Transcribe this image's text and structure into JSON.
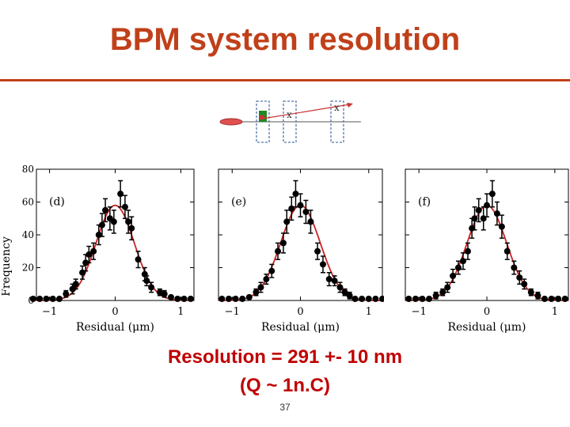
{
  "slide": {
    "title": "BPM system resolution",
    "result_line1": "Resolution = 291 +- 10 nm",
    "result_line2": "(Q ~ 1n.C)",
    "page_number": "37",
    "title_color": "#c0401a",
    "rule_color": "#c0401a",
    "result_color": "#c00000"
  },
  "diagram": {
    "marker_label": "x",
    "beam_color": "#e05050",
    "bpm_box_color": "#5577aa",
    "trajectory_color": "#cc3333",
    "mid_marker_label": "x"
  },
  "chart_data": [
    {
      "type": "scatter",
      "panel_label": "(d)",
      "xlabel": "Residual (μm)",
      "ylabel": "Frequency",
      "xlim": [
        -1.2,
        1.2
      ],
      "ylim": [
        0,
        80
      ],
      "xticks": [
        -1,
        0,
        1
      ],
      "yticks": [
        0,
        20,
        40,
        60,
        80
      ],
      "show_yticklabels": true,
      "fit_curve": {
        "type": "gaussian",
        "amplitude": 58,
        "mean": 0,
        "sigma": 0.29,
        "color": "#cc2222"
      },
      "points": [
        {
          "x": -1.25,
          "y": 1,
          "err": 1
        },
        {
          "x": -1.15,
          "y": 1,
          "err": 1
        },
        {
          "x": -1.05,
          "y": 1,
          "err": 1
        },
        {
          "x": -0.95,
          "y": 1,
          "err": 1
        },
        {
          "x": -0.85,
          "y": 1,
          "err": 1
        },
        {
          "x": -0.75,
          "y": 4,
          "err": 2
        },
        {
          "x": -0.65,
          "y": 7,
          "err": 3
        },
        {
          "x": -0.6,
          "y": 10,
          "err": 3
        },
        {
          "x": -0.5,
          "y": 17,
          "err": 4
        },
        {
          "x": -0.45,
          "y": 23,
          "err": 5
        },
        {
          "x": -0.4,
          "y": 28,
          "err": 5
        },
        {
          "x": -0.33,
          "y": 30,
          "err": 5
        },
        {
          "x": -0.25,
          "y": 40,
          "err": 6
        },
        {
          "x": -0.2,
          "y": 46,
          "err": 7
        },
        {
          "x": -0.15,
          "y": 55,
          "err": 7
        },
        {
          "x": -0.08,
          "y": 50,
          "err": 7
        },
        {
          "x": -0.02,
          "y": 48,
          "err": 7
        },
        {
          "x": 0.08,
          "y": 65,
          "err": 8
        },
        {
          "x": 0.15,
          "y": 57,
          "err": 7
        },
        {
          "x": 0.2,
          "y": 48,
          "err": 7
        },
        {
          "x": 0.25,
          "y": 44,
          "err": 7
        },
        {
          "x": 0.35,
          "y": 25,
          "err": 5
        },
        {
          "x": 0.45,
          "y": 16,
          "err": 4
        },
        {
          "x": 0.48,
          "y": 12,
          "err": 3
        },
        {
          "x": 0.55,
          "y": 8,
          "err": 3
        },
        {
          "x": 0.68,
          "y": 5,
          "err": 2
        },
        {
          "x": 0.75,
          "y": 4,
          "err": 2
        },
        {
          "x": 0.85,
          "y": 2,
          "err": 1
        },
        {
          "x": 0.95,
          "y": 1,
          "err": 1
        },
        {
          "x": 1.05,
          "y": 1,
          "err": 1
        },
        {
          "x": 1.15,
          "y": 1,
          "err": 1
        }
      ]
    },
    {
      "type": "scatter",
      "panel_label": "(e)",
      "xlabel": "Residual (μm)",
      "ylabel": "",
      "xlim": [
        -1.2,
        1.2
      ],
      "ylim": [
        0,
        80
      ],
      "xticks": [
        -1,
        0,
        1
      ],
      "yticks": [
        0,
        20,
        40,
        60,
        80
      ],
      "show_yticklabels": false,
      "fit_curve": {
        "type": "gaussian",
        "amplitude": 58,
        "mean": 0,
        "sigma": 0.29,
        "color": "#cc2222"
      },
      "points": [
        {
          "x": -1.15,
          "y": 1,
          "err": 1
        },
        {
          "x": -1.05,
          "y": 1,
          "err": 1
        },
        {
          "x": -0.95,
          "y": 1,
          "err": 1
        },
        {
          "x": -0.85,
          "y": 1,
          "err": 1
        },
        {
          "x": -0.75,
          "y": 2,
          "err": 1
        },
        {
          "x": -0.65,
          "y": 5,
          "err": 2
        },
        {
          "x": -0.58,
          "y": 8,
          "err": 3
        },
        {
          "x": -0.5,
          "y": 13,
          "err": 3
        },
        {
          "x": -0.42,
          "y": 18,
          "err": 4
        },
        {
          "x": -0.33,
          "y": 30,
          "err": 5
        },
        {
          "x": -0.25,
          "y": 35,
          "err": 6
        },
        {
          "x": -0.2,
          "y": 48,
          "err": 7
        },
        {
          "x": -0.13,
          "y": 56,
          "err": 7
        },
        {
          "x": -0.07,
          "y": 65,
          "err": 8
        },
        {
          "x": 0.0,
          "y": 58,
          "err": 7
        },
        {
          "x": 0.08,
          "y": 54,
          "err": 7
        },
        {
          "x": 0.15,
          "y": 48,
          "err": 7
        },
        {
          "x": 0.25,
          "y": 30,
          "err": 5
        },
        {
          "x": 0.33,
          "y": 22,
          "err": 5
        },
        {
          "x": 0.42,
          "y": 13,
          "err": 4
        },
        {
          "x": 0.5,
          "y": 12,
          "err": 3
        },
        {
          "x": 0.58,
          "y": 8,
          "err": 3
        },
        {
          "x": 0.65,
          "y": 5,
          "err": 2
        },
        {
          "x": 0.72,
          "y": 3,
          "err": 2
        },
        {
          "x": 0.8,
          "y": 1,
          "err": 1
        },
        {
          "x": 0.9,
          "y": 1,
          "err": 1
        },
        {
          "x": 1.0,
          "y": 1,
          "err": 1
        },
        {
          "x": 1.1,
          "y": 1,
          "err": 1
        },
        {
          "x": 1.2,
          "y": 1,
          "err": 1
        }
      ]
    },
    {
      "type": "scatter",
      "panel_label": "(f)",
      "xlabel": "Residual (μm)",
      "ylabel": "",
      "xlim": [
        -1.2,
        1.2
      ],
      "ylim": [
        0,
        80
      ],
      "xticks": [
        -1,
        0,
        1
      ],
      "yticks": [
        0,
        20,
        40,
        60,
        80
      ],
      "show_yticklabels": false,
      "fit_curve": {
        "type": "gaussian",
        "amplitude": 58,
        "mean": 0,
        "sigma": 0.29,
        "color": "#cc2222"
      },
      "points": [
        {
          "x": -1.15,
          "y": 1,
          "err": 1
        },
        {
          "x": -1.05,
          "y": 1,
          "err": 1
        },
        {
          "x": -0.95,
          "y": 1,
          "err": 1
        },
        {
          "x": -0.85,
          "y": 1,
          "err": 1
        },
        {
          "x": -0.75,
          "y": 3,
          "err": 2
        },
        {
          "x": -0.65,
          "y": 5,
          "err": 2
        },
        {
          "x": -0.58,
          "y": 8,
          "err": 3
        },
        {
          "x": -0.5,
          "y": 15,
          "err": 4
        },
        {
          "x": -0.42,
          "y": 20,
          "err": 4
        },
        {
          "x": -0.35,
          "y": 24,
          "err": 5
        },
        {
          "x": -0.28,
          "y": 30,
          "err": 5
        },
        {
          "x": -0.22,
          "y": 44,
          "err": 6
        },
        {
          "x": -0.18,
          "y": 50,
          "err": 7
        },
        {
          "x": -0.12,
          "y": 55,
          "err": 7
        },
        {
          "x": -0.05,
          "y": 50,
          "err": 7
        },
        {
          "x": 0.0,
          "y": 58,
          "err": 7
        },
        {
          "x": 0.08,
          "y": 65,
          "err": 8
        },
        {
          "x": 0.15,
          "y": 53,
          "err": 7
        },
        {
          "x": 0.22,
          "y": 45,
          "err": 7
        },
        {
          "x": 0.3,
          "y": 30,
          "err": 5
        },
        {
          "x": 0.4,
          "y": 20,
          "err": 4
        },
        {
          "x": 0.48,
          "y": 14,
          "err": 4
        },
        {
          "x": 0.55,
          "y": 10,
          "err": 3
        },
        {
          "x": 0.65,
          "y": 5,
          "err": 2
        },
        {
          "x": 0.75,
          "y": 3,
          "err": 2
        },
        {
          "x": 0.85,
          "y": 1,
          "err": 1
        },
        {
          "x": 0.95,
          "y": 1,
          "err": 1
        },
        {
          "x": 1.05,
          "y": 1,
          "err": 1
        },
        {
          "x": 1.15,
          "y": 1,
          "err": 1
        }
      ]
    }
  ]
}
